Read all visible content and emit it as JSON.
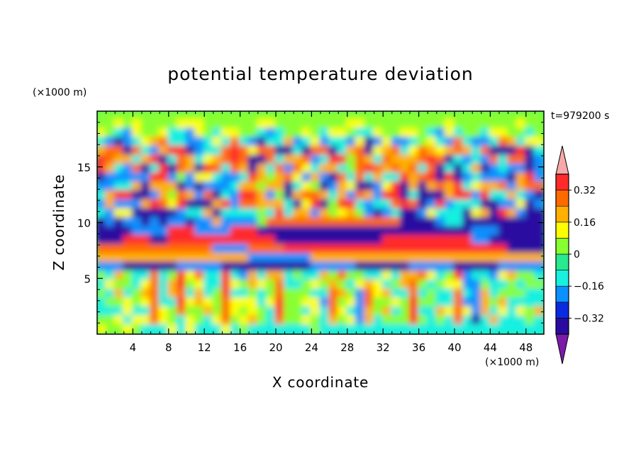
{
  "chart_data": {
    "type": "heatmap",
    "title": "potential temperature deviation",
    "xlabel": "X coordinate",
    "ylabel": "Z coordinate",
    "x_unit": "(×1000 m)",
    "y_unit": "(×1000 m)",
    "time_label": "t=979200 s",
    "xlim": [
      0,
      50
    ],
    "ylim": [
      0,
      20
    ],
    "x_ticks": [
      4,
      8,
      12,
      16,
      20,
      24,
      28,
      32,
      36,
      40,
      44,
      48
    ],
    "y_ticks": [
      5,
      10,
      15
    ],
    "colorbar": {
      "tick_values": [
        0.32,
        0.16,
        0,
        -0.16,
        -0.32
      ],
      "tick_labels": [
        "0.32",
        "0.16",
        "0",
        "−0.16",
        "−0.32"
      ],
      "levels": [
        -0.4,
        -0.32,
        -0.24,
        -0.16,
        -0.08,
        0,
        0.08,
        0.16,
        0.24,
        0.32,
        0.4
      ],
      "colors_low_to_high": [
        "#7a1ca8",
        "#2a0aa0",
        "#0a2ae0",
        "#0a90ff",
        "#18f0e0",
        "#28e890",
        "#88ff30",
        "#ffff00",
        "#ffb000",
        "#ff6a00",
        "#ff2a2a",
        "#f8a8a8"
      ],
      "extend": "both"
    },
    "field_rows": [
      "GGGGGGGGGGGGGGGGGGGGGGGGGGGGGGGGGGGGGGGGGGGGGGGGGG",
      "GGLGLGGGGLLLGGGGGGLLGGGGGGGGLLGGGGGGGGGLGGGGGGGLGG",
      "LGCBLGGLCCBLGCLLGGCBCGGLGCLLGCCLGGLLGCBLCGGCLLGGCG",
      "CBPBCLYOCCBBCLCOCBPCCYBCLBCCBLPBLBBCGLCBOCBBCOYCLL",
      "YOOPOCBYRRPBCCOROLOOPPCPOOPCYOPLYOCLOYLYOYCOPPPRPC",
      "ROYYCYRPCOYCLYOROPPOCYYOBCRRGOYCOYYYOROPCBCBOCOOPB",
      "RYCBOPCRPOYPROCOYPYCOBOLCYYCGOROYOYOCOPCPCYPBCBBPB",
      "PBBBBBRRBGBLLCBBCRYGYOLBYBPOCOCYCCRYORPRPBCBBBPYRB",
      "BBCCYPYYYPBPBBBCYYGYYPCLGPBYLPPBLRPYPYOYRCLYYOBYOO",
      "CYRRPPBYGOYBOPCBRRYBGPYOOYCYBOYBRRPCPPPYRRBRCCYCBP",
      "BYBBBYROLRPPPYRBOOYYYCPLRPGRRCBCCOROPBRBCCCPPBBLPB",
      "CBLLPPPPPBCCYPCCCCGCRCYYBYGLYGBPBCPPBLCCCPLYPRYBPP",
      "PBPBBPBPBBPBBYBBBBGOOOOOOOOOOOOOOOPPPPBCCPPPPPPPPP",
      "PPPPBBBBRRRBBBBRRRPPPPPPPPPPPPPPPPPPPPPPPPBBBPPPPP",
      "PPPRRRPPRRRRRRRRRRRRPPPPPPPPPPPPRRRRRRRRRRBBPPPPPP",
      "OOOOOOOOOOOOOBBBBOOOORRRRRRRRRRRRRRRRRRRRRRRRRPPPP",
      "YYYYYYYYYYYYYYYYYBBBBBBBYYYYYYYYYYYYYYYYYYYYYYYYYY",
      "BBBPPPPPPBBBBBPPPPPPPPPPBBBBBPPPPPPBBBBBPPPPPBBBBB",
      "GCYGCCOCGRLOCCRCBYCYYCGCCYGOGGCCLCYYOLCGRBCCBLYGGC",
      "CLGGCLOCYRGLCCRLGYLGOCCGLGYGCLYLCGYOGCGLLBBGCCGCGG",
      "GCYCGYOCYOCYCGRCCGCGOGGGCCOYGBOLYCCOCGCCOCBYCGGGCC",
      "CGGLGLOCCRLYLGOLLLCLRGGLLBOGLBOGGLGRGGCCOBBYGYCCCC",
      "CCCLCCOLGOGGYGOLGLGCRGGCLCOLCBYGYCGRCCYLOLBYCLCLGY",
      "GGLCLLOLGCLGCLOGLYGCOGGLGCYGLBYCGGGRGCGCOCPCYCCCGC",
      "LGGLGCCCLCLCCCLCGCCCCCCCGCCCCCCCCCCCCCCCCCCCCCCCCC"
    ],
    "field_legend": {
      "V": -0.44,
      "P": -0.36,
      "B": -0.24,
      "C": -0.12,
      "G": 0.0,
      "L": 0.08,
      "Y": 0.18,
      "O": 0.26,
      "R": 0.34,
      "K": 0.44
    }
  }
}
